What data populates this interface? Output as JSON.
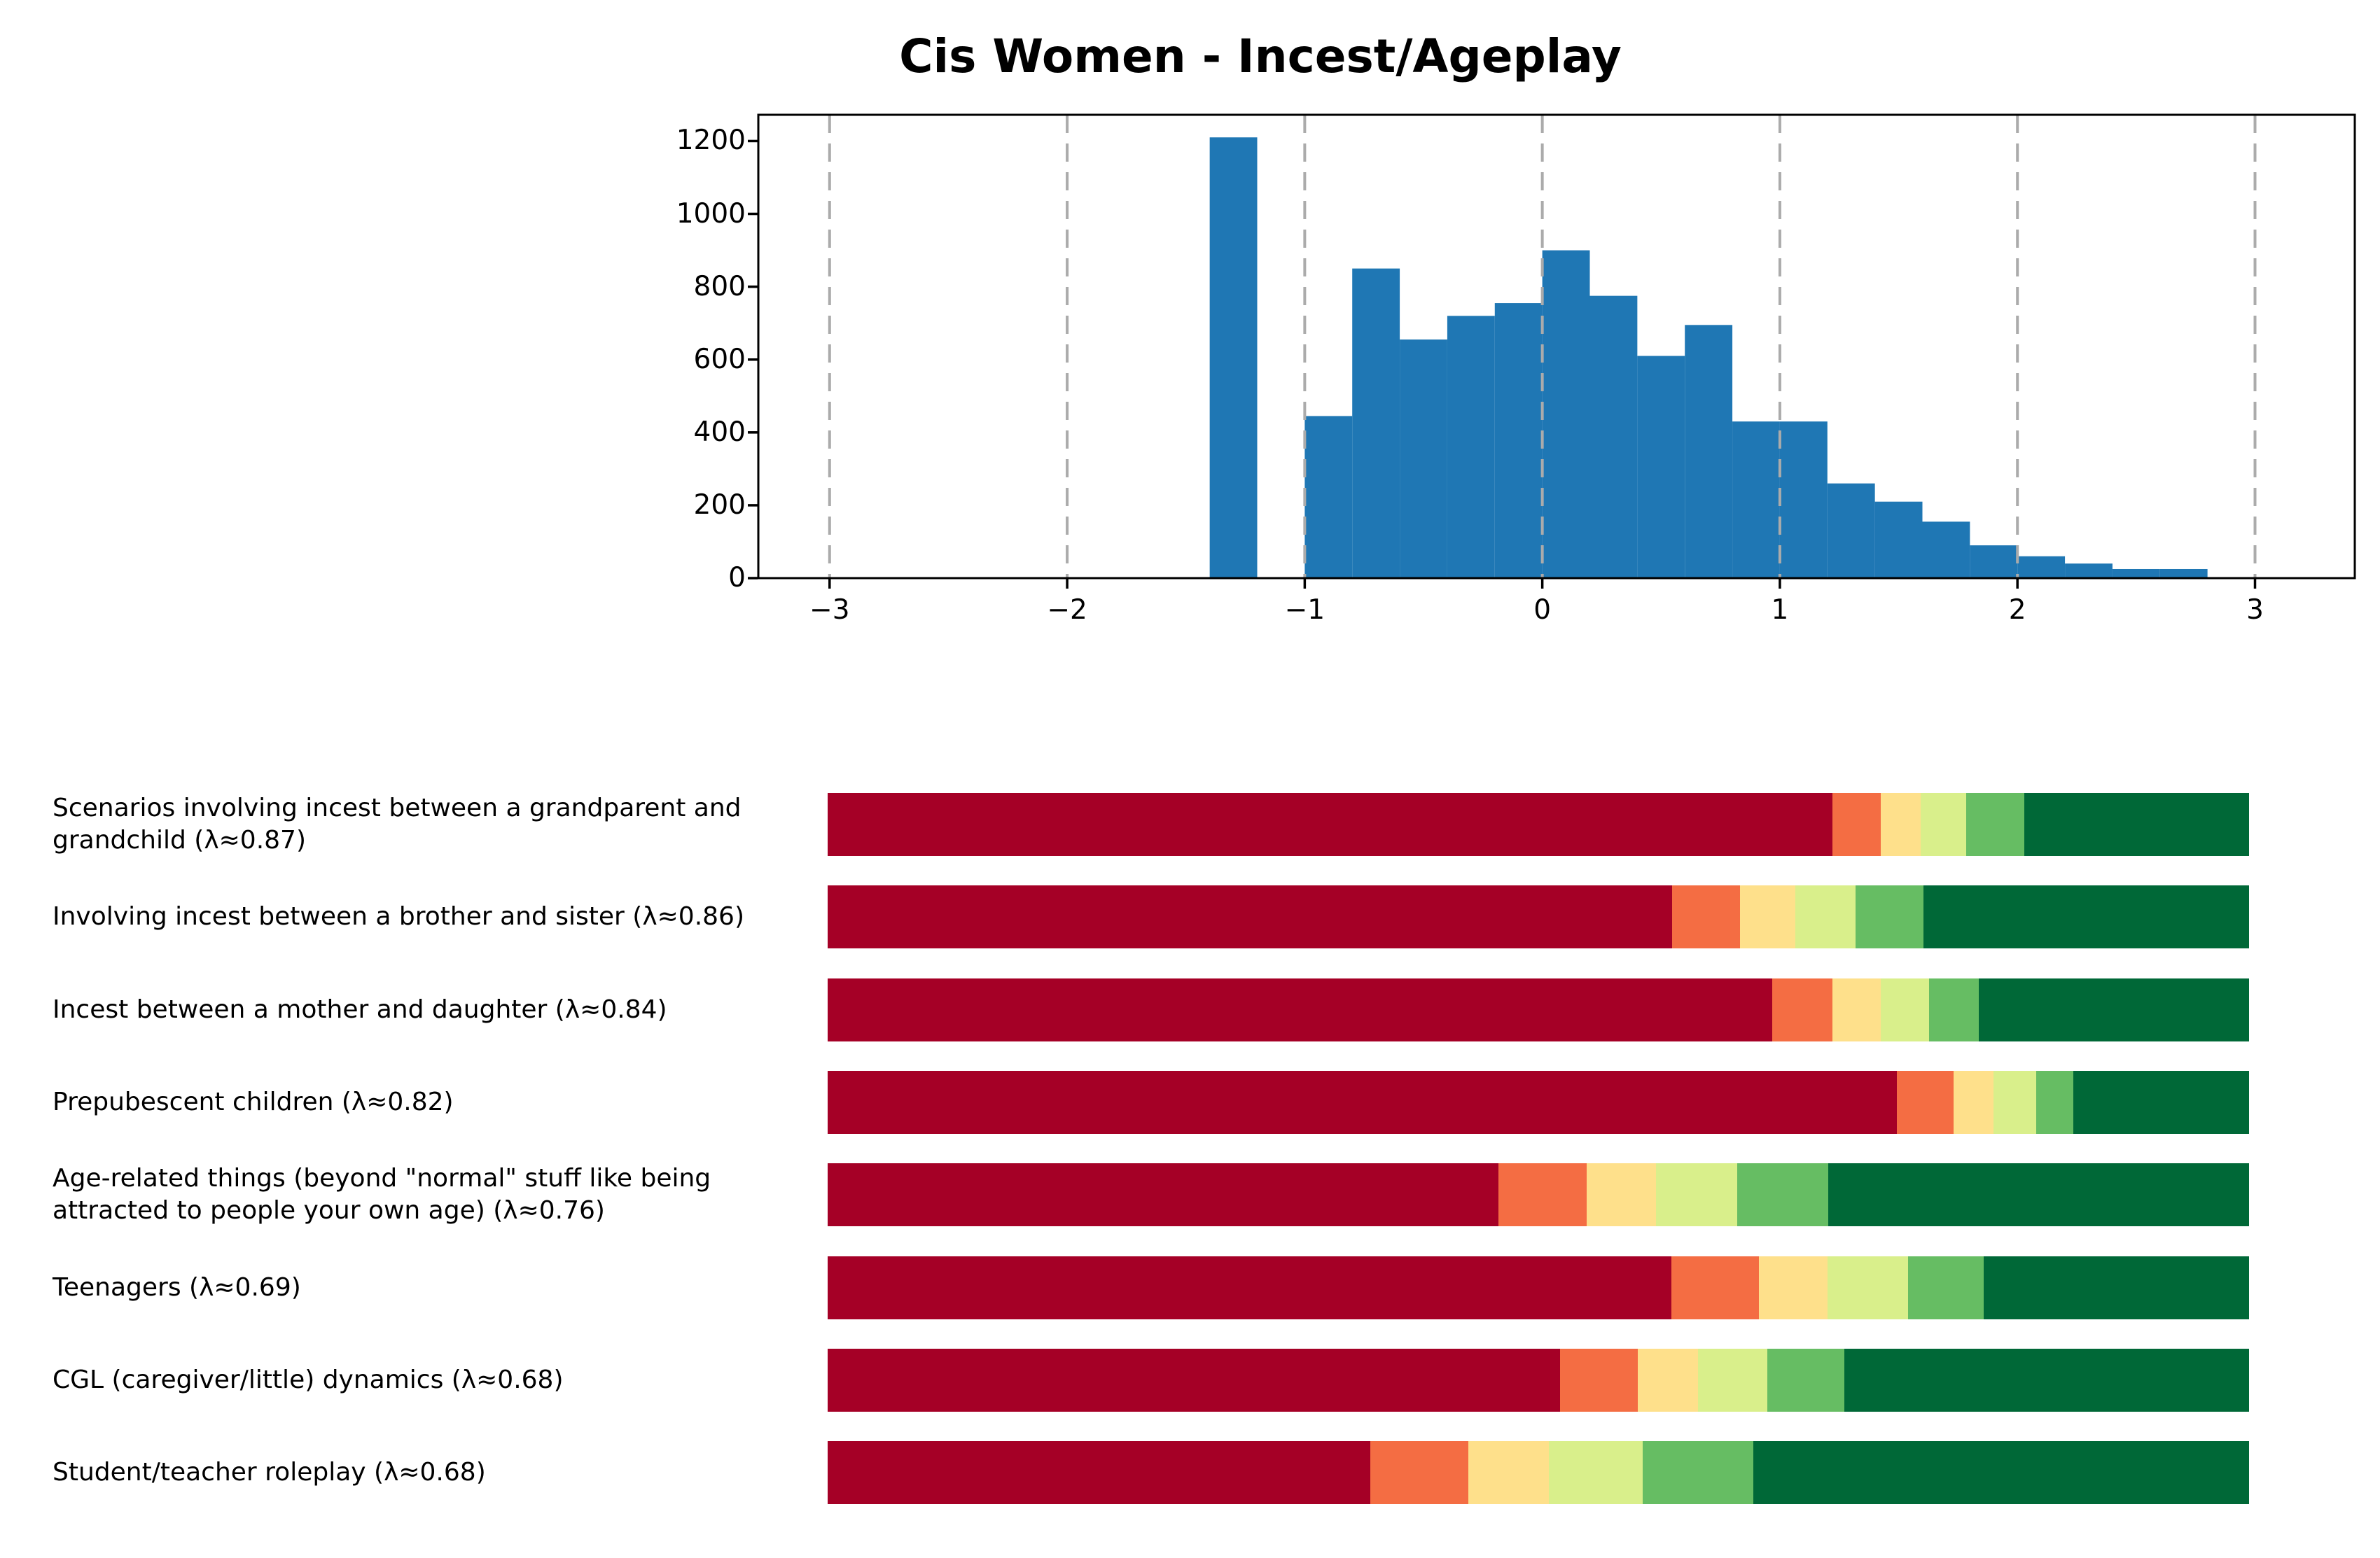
{
  "figure": {
    "background": "#ffffff"
  },
  "chart_data": [
    {
      "type": "bar",
      "subtype": "histogram",
      "title": "Cis Women - Incest/Ageplay",
      "xlabel": "",
      "ylabel": "",
      "bar_color": "#1f77b4",
      "gridline_color": "#ababab",
      "gridline_style": "dashed-vertical-at-xticks",
      "spine_color": "#000000",
      "bin_start": -1.4,
      "bin_width": 0.2,
      "counts": [
        1210,
        0,
        445,
        850,
        655,
        720,
        755,
        900,
        775,
        610,
        695,
        430,
        430,
        260,
        210,
        155,
        90,
        60,
        40,
        25,
        25
      ],
      "x_tick_values": [
        -3,
        -2,
        -1,
        0,
        1,
        2,
        3
      ],
      "x_tick_labels": [
        "−3",
        "−2",
        "−1",
        "0",
        "1",
        "2",
        "3"
      ],
      "y_tick_values": [
        0,
        200,
        400,
        600,
        800,
        1000,
        1200
      ],
      "y_tick_labels": [
        "0",
        "200",
        "400",
        "600",
        "800",
        "1000",
        "1200"
      ],
      "xlim": [
        -3.3,
        3.42
      ],
      "ylim": [
        0,
        1272
      ],
      "legend": "none"
    },
    {
      "type": "bar",
      "subtype": "stacked-horizontal-percent",
      "title": "",
      "unit": "percent",
      "colors": [
        "#a50026",
        "#f46d43",
        "#fee08b",
        "#d9ef8b",
        "#66bd63",
        "#006837"
      ],
      "legend": "none",
      "rows": [
        {
          "label": "Scenarios involving incest between a grandparent and grandchild (λ≈0.87)",
          "values": [
            70.7,
            3.4,
            2.8,
            3.2,
            4.1,
            15.8
          ]
        },
        {
          "label": "Involving incest between a brother and sister (λ≈0.86)",
          "values": [
            59.4,
            4.8,
            3.9,
            4.2,
            4.8,
            22.9
          ]
        },
        {
          "label": "Incest between a mother and daughter (λ≈0.84)",
          "values": [
            66.4,
            4.2,
            3.4,
            3.4,
            3.5,
            19.0
          ]
        },
        {
          "label": "Prepubescent children (λ≈0.82)",
          "values": [
            75.3,
            4.0,
            2.8,
            3.0,
            2.6,
            12.4
          ]
        },
        {
          "label": "Age-related things (beyond \"normal\" stuff like being attracted to people your own age) (λ≈0.76)",
          "values": [
            47.2,
            6.2,
            4.9,
            5.7,
            6.4,
            29.6
          ]
        },
        {
          "label": "Teenagers (λ≈0.69)",
          "values": [
            59.4,
            6.2,
            4.8,
            5.7,
            5.3,
            18.7
          ]
        },
        {
          "label": "CGL (caregiver/little) dynamics (λ≈0.68)",
          "values": [
            51.4,
            5.5,
            4.2,
            4.9,
            5.4,
            28.4
          ]
        },
        {
          "label": "Student/teacher roleplay (λ≈0.68)",
          "values": [
            38.2,
            6.9,
            5.7,
            6.6,
            7.8,
            34.9
          ]
        }
      ]
    }
  ]
}
